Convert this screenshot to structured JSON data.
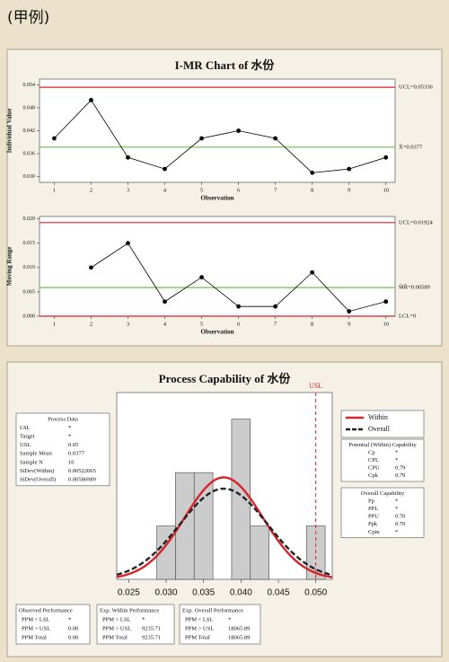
{
  "header": {
    "title": "(甲例)"
  },
  "chart_data": [
    {
      "type": "line",
      "title": "I-MR Chart of 水份",
      "xlabel": "Observation",
      "ylabel": "Individual Value",
      "x": [
        1,
        2,
        3,
        4,
        5,
        6,
        7,
        8,
        9,
        10
      ],
      "values": [
        0.04,
        0.05,
        0.035,
        0.032,
        0.04,
        0.042,
        0.04,
        0.031,
        0.032,
        0.035
      ],
      "color": "#000000",
      "xlim": [
        0.6,
        10.25
      ],
      "ylim": [
        0.0285,
        0.0555
      ],
      "xticks": [
        1,
        2,
        3,
        4,
        5,
        6,
        7,
        8,
        9,
        10
      ],
      "yticks": [
        {
          "value": 0.03,
          "label": "0.030"
        },
        {
          "value": 0.036,
          "label": "0.036"
        },
        {
          "value": 0.042,
          "label": "0.042"
        },
        {
          "value": 0.048,
          "label": "0.048"
        },
        {
          "value": 0.054,
          "label": "0.054"
        }
      ],
      "ref_lines": [
        {
          "value": 0.05336,
          "label": "UCL=0.05336",
          "color": "#d8232a"
        },
        {
          "value": 0.0377,
          "label": "X̄=0.0377",
          "color": "#6cc04a"
        }
      ]
    },
    {
      "type": "line",
      "xlabel": "Observation",
      "ylabel": "Moving Range",
      "x": [
        1,
        2,
        3,
        4,
        5,
        6,
        7,
        8,
        9,
        10
      ],
      "values": [
        null,
        0.01,
        0.015,
        0.003,
        0.008,
        0.002,
        0.002,
        0.009,
        0.001,
        0.003
      ],
      "color": "#000000",
      "xlim": [
        0.6,
        10.25
      ],
      "ylim": [
        0,
        0.0205
      ],
      "xticks": [
        1,
        2,
        3,
        4,
        5,
        6,
        7,
        8,
        9,
        10
      ],
      "yticks": [
        {
          "value": 0,
          "label": "0.000"
        },
        {
          "value": 0.005,
          "label": "0.005"
        },
        {
          "value": 0.01,
          "label": "0.010"
        },
        {
          "value": 0.015,
          "label": "0.015"
        },
        {
          "value": 0.02,
          "label": "0.020"
        }
      ],
      "ref_lines": [
        {
          "value": 0.01924,
          "label": "UCL=0.01924",
          "color": "#d8232a"
        },
        {
          "value": 0.00589,
          "label": "M̄R̄=0.00589",
          "color": "#6cc04a"
        },
        {
          "value": 0,
          "label": "LCL=0",
          "color": "#d8232a"
        }
      ]
    },
    {
      "type": "histogram",
      "title": "Process Capability of 水份",
      "bins": [
        0.02875,
        0.03125,
        0.03375,
        0.03625,
        0.03875,
        0.04125,
        0.04375,
        0.04625,
        0.04875,
        0.05125
      ],
      "values": [
        1,
        2,
        2,
        0,
        3,
        1,
        0,
        0,
        1
      ],
      "color": "#cccccc",
      "xlim": [
        0.0234,
        0.0522
      ],
      "ylim": [
        0,
        3.5
      ],
      "xticks": [
        {
          "value": 0.025,
          "label": "0.025"
        },
        {
          "value": 0.03,
          "label": "0.030"
        },
        {
          "value": 0.035,
          "label": "0.035"
        },
        {
          "value": 0.04,
          "label": "0.040"
        },
        {
          "value": 0.045,
          "label": "0.045"
        },
        {
          "value": 0.05,
          "label": "0.050"
        }
      ],
      "ref_lines": [
        {
          "value": 0.05,
          "label": "USL",
          "color": "#d8232a"
        }
      ],
      "series": [
        {
          "name": "Within",
          "color": "#d8232a",
          "dashed": false
        },
        {
          "name": "Overall",
          "color": "#222222",
          "dashed": true
        }
      ]
    }
  ],
  "tables": {
    "process_data": {
      "title": "Process Data",
      "rows": [
        [
          "LSL",
          "*"
        ],
        [
          "Target",
          "*"
        ],
        [
          "USL",
          "0.05"
        ],
        [
          "Sample Mean",
          "0.0377"
        ],
        [
          "Sample N",
          "10"
        ],
        [
          "StDev(Within)",
          "0.00522065"
        ],
        [
          "StDev(Overall)",
          "0.00586989"
        ]
      ]
    },
    "potential": {
      "title": "Potential (Within) Capability",
      "rows": [
        [
          "Cp",
          "*"
        ],
        [
          "CPL",
          "*"
        ],
        [
          "CPU",
          "0.79"
        ],
        [
          "Cpk",
          "0.79"
        ]
      ]
    },
    "overall": {
      "title": "Overall Capability",
      "rows": [
        [
          "Pp",
          "*"
        ],
        [
          "PPL",
          "*"
        ],
        [
          "PPU",
          "0.70"
        ],
        [
          "Ppk",
          "0.70"
        ],
        [
          "Cpm",
          "*"
        ]
      ]
    },
    "observed": {
      "title": "Observed Performance",
      "rows": [
        [
          "PPM < LSL",
          "*"
        ],
        [
          "PPM > USL",
          "0.00"
        ],
        [
          "PPM Total",
          "0.00"
        ]
      ]
    },
    "exp_within": {
      "title": "Exp. Within Performance",
      "rows": [
        [
          "PPM < LSL",
          "*"
        ],
        [
          "PPM > USL",
          "9235.71"
        ],
        [
          "PPM Total",
          "9235.71"
        ]
      ]
    },
    "exp_overall": {
      "title": "Exp. Overall Performance",
      "rows": [
        [
          "PPM < LSL",
          "*"
        ],
        [
          "PPM > USL",
          "18065.89"
        ],
        [
          "PPM Total",
          "18065.89"
        ]
      ]
    }
  }
}
